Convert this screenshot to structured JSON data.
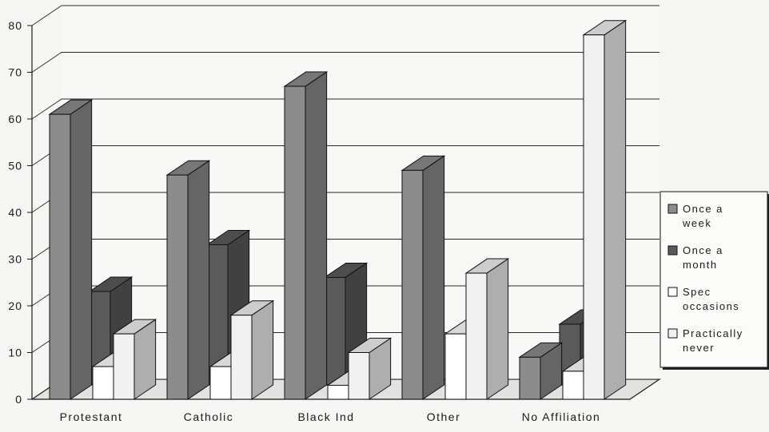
{
  "chart_data": {
    "type": "bar",
    "title": "",
    "xlabel": "",
    "ylabel": "",
    "ylim": [
      0,
      80
    ],
    "yticks": [
      0,
      10,
      20,
      30,
      40,
      50,
      60,
      70,
      80
    ],
    "grid": true,
    "legend_position": "right",
    "style": "3d-clustered-columns",
    "categories": [
      "Protestant",
      "Catholic",
      "Black Ind",
      "Other",
      "No Affiliation"
    ],
    "series": [
      {
        "name": "Once a week",
        "legend_lines": [
          "Once a",
          "week"
        ],
        "values": [
          61,
          48,
          67,
          49,
          9
        ],
        "color": "#8c8c8c"
      },
      {
        "name": "Once a month",
        "legend_lines": [
          "Once a",
          "month"
        ],
        "values": [
          20,
          30,
          23,
          0,
          13
        ],
        "color": "#5a5a5a"
      },
      {
        "name": "Spec occasions",
        "legend_lines": [
          "Spec",
          "occasions"
        ],
        "values": [
          7,
          7,
          3,
          14,
          6
        ],
        "color": "#ffffff"
      },
      {
        "name": "Practically never",
        "legend_lines": [
          "Practically",
          "never"
        ],
        "values": [
          14,
          18,
          10,
          27,
          78
        ],
        "color": "#f1f1f1"
      }
    ]
  }
}
